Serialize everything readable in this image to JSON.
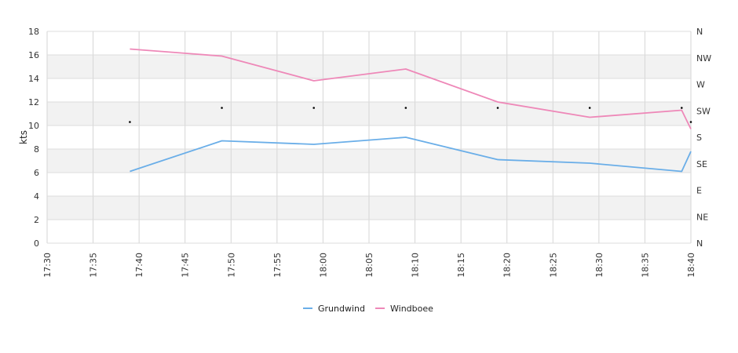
{
  "chart_data": {
    "type": "line",
    "ylabel": "kts",
    "ylim": [
      0,
      18
    ],
    "yticks": [
      0,
      2,
      4,
      6,
      8,
      10,
      12,
      14,
      16,
      18
    ],
    "xlim": [
      "17:30",
      "18:40"
    ],
    "xticks": [
      "17:30",
      "17:35",
      "17:40",
      "17:45",
      "17:50",
      "17:55",
      "18:00",
      "18:05",
      "18:10",
      "18:15",
      "18:20",
      "18:25",
      "18:30",
      "18:35",
      "18:40"
    ],
    "y2ticks": [
      "N",
      "NE",
      "E",
      "SE",
      "S",
      "SW",
      "W",
      "NW",
      "N"
    ],
    "grid": true,
    "legend": "bottom-center",
    "series": [
      {
        "name": "Grundwind",
        "color": "#6aaee8",
        "x": [
          "17:39",
          "17:49",
          "17:59",
          "18:09",
          "18:19",
          "18:29",
          "18:39",
          "18:40"
        ],
        "values": [
          6.1,
          8.7,
          8.4,
          9.0,
          7.1,
          6.8,
          6.1,
          7.8
        ]
      },
      {
        "name": "Windboee",
        "color": "#ee88b8",
        "x": [
          "17:39",
          "17:49",
          "17:59",
          "18:09",
          "18:19",
          "18:29",
          "18:39",
          "18:40"
        ],
        "values": [
          16.5,
          15.9,
          13.8,
          14.8,
          12.0,
          10.7,
          11.3,
          9.7
        ]
      }
    ],
    "direction_markers": {
      "x": [
        "17:39",
        "17:49",
        "17:59",
        "18:09",
        "18:19",
        "18:29",
        "18:39",
        "18:40"
      ],
      "values": [
        10.3,
        11.5,
        11.5,
        11.5,
        11.5,
        11.5,
        11.5,
        10.3
      ],
      "color": "#000000"
    }
  }
}
